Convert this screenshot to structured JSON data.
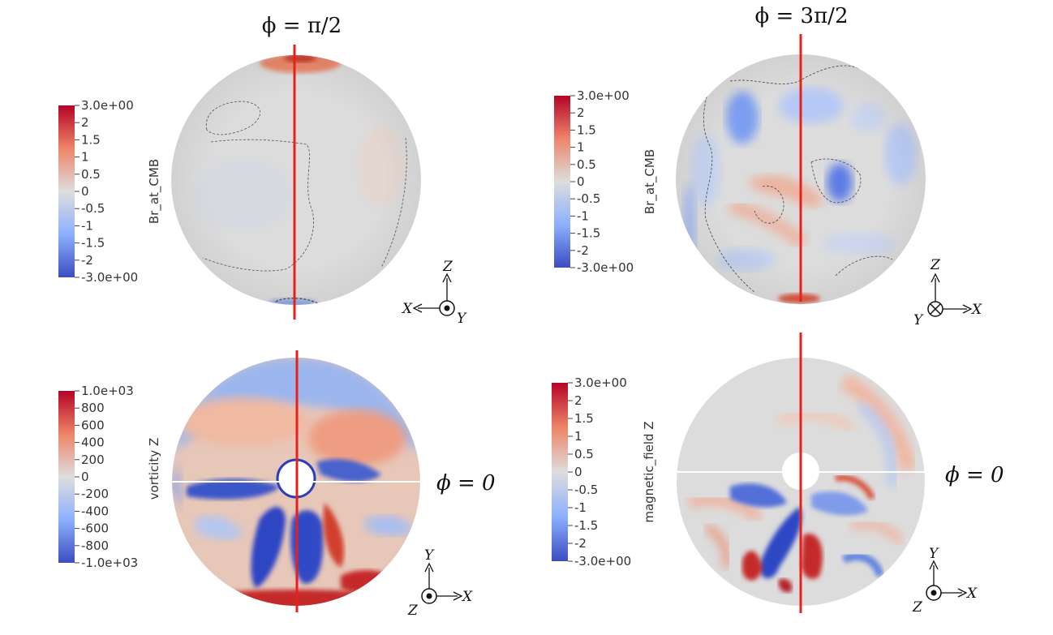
{
  "panels": {
    "top_left": {
      "colorbar_title": "Br_at_CMB",
      "colorbar_ticks": [
        "3.0e+00",
        "2",
        "1.5",
        "1",
        "0.5",
        "0",
        "-0.5",
        "-1",
        "-1.5",
        "-2",
        "-3.0e+00"
      ],
      "phi_label": "ϕ = π/2",
      "axes": {
        "up": "Z",
        "left": "X",
        "out": "Y"
      }
    },
    "top_right": {
      "colorbar_title": "Br_at_CMB",
      "colorbar_ticks": [
        "3.0e+00",
        "2",
        "1.5",
        "1",
        "0.5",
        "0",
        "-0.5",
        "-1",
        "-1.5",
        "-2",
        "-3.0e+00"
      ],
      "phi_label": "ϕ = 3π/2",
      "axes": {
        "up": "Z",
        "right": "X",
        "in": "Y"
      }
    },
    "bottom_left": {
      "colorbar_title": "vorticity Z",
      "colorbar_ticks": [
        "1.0e+03",
        "800",
        "600",
        "400",
        "200",
        "0",
        "-200",
        "-400",
        "-600",
        "-800",
        "-1.0e+03"
      ],
      "phi_label": "ϕ = 0",
      "axes": {
        "up": "Y",
        "right": "X",
        "out": "Z"
      }
    },
    "bottom_right": {
      "colorbar_title": "magnetic_field Z",
      "colorbar_ticks": [
        "3.0e+00",
        "2",
        "1.5",
        "1",
        "0.5",
        "0",
        "-0.5",
        "-1",
        "-1.5",
        "-2",
        "-3.0e+00"
      ],
      "phi_label": "ϕ = 0",
      "axes": {
        "up": "Y",
        "right": "X",
        "out": "Z"
      }
    }
  },
  "colors": {
    "positive": "#b40426",
    "neutral": "#dddddd",
    "negative": "#3b4cc0",
    "cut_line_vertical": "#e8201c",
    "cut_line_horizontal": "#ffffff"
  }
}
